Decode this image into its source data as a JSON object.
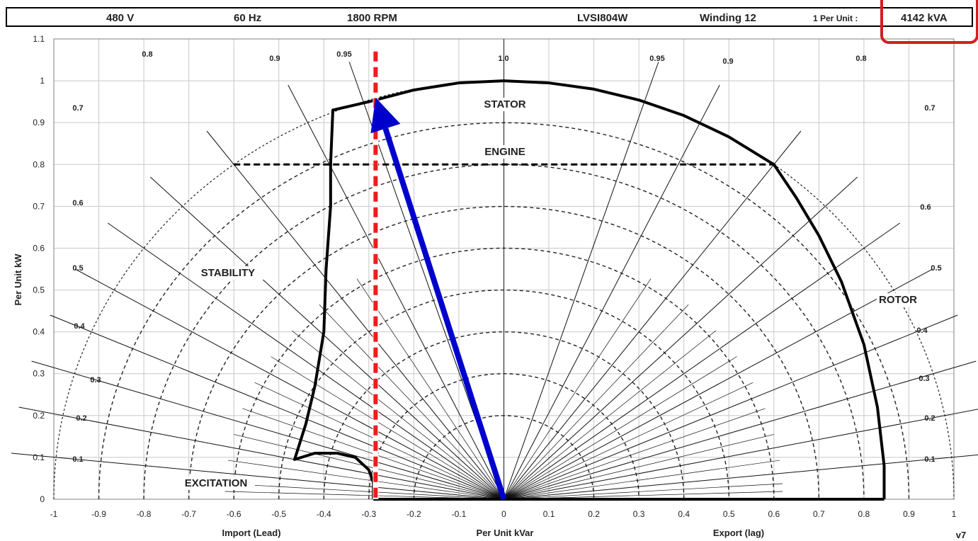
{
  "header": {
    "voltage": "480 V",
    "frequency": "60 Hz",
    "speed": "1800 RPM",
    "model": "LVSI804W",
    "winding": "Winding 12",
    "per_unit_label": "1 Per Unit :",
    "per_unit_value": "4142 kVA"
  },
  "colors": {
    "limit_curve": "#000000",
    "operating_vector": "#0000cc",
    "red_dashed_line": "#ee1c1c",
    "highlight_box": "#d02020",
    "grid": "#c8c8c8"
  },
  "chart_data": {
    "type": "line",
    "title": "",
    "xlabel": "Per Unit kVar",
    "xlabel_left": "Import (Lead)",
    "xlabel_right": "Export (lag)",
    "ylabel": "Per Unit kW",
    "xlim": [
      -1,
      1
    ],
    "ylim": [
      0,
      1.1
    ],
    "grid": true,
    "x_ticks": [
      "-1",
      "-0.9",
      "-0.8",
      "-0.7",
      "-0.6",
      "-0.5",
      "-0.4",
      "-0.3",
      "-0.2",
      "-0.1",
      "0",
      "0.1",
      "0.2",
      "0.3",
      "0.4",
      "0.5",
      "0.6",
      "0.7",
      "0.8",
      "0.9",
      "1"
    ],
    "y_ticks": [
      "0",
      "0.1",
      "0.2",
      "0.3",
      "0.4",
      "0.5",
      "0.6",
      "0.7",
      "0.8",
      "0.9",
      "1",
      "1.1"
    ],
    "circle_radii": [
      0.2,
      0.3,
      0.4,
      0.5,
      0.6,
      0.7,
      0.8,
      0.9,
      1.0
    ],
    "power_factor_labels": {
      "left": [
        "0.1",
        "0.2",
        "0.3",
        "0.4",
        "0.5",
        "0.6",
        "0.7",
        "0.8",
        "0.9",
        "0.95"
      ],
      "center": "1.0",
      "right": [
        "0.95",
        "0.9",
        "0.8",
        "0.7",
        "0.6",
        "0.5",
        "0.4",
        "0.3",
        "0.2",
        "0.1"
      ]
    },
    "region_labels": [
      "STATOR",
      "ENGINE",
      "STABILITY",
      "ROTOR",
      "EXCITATION"
    ],
    "capability_curve": [
      [
        -0.29,
        0
      ],
      [
        -0.29,
        0.04
      ],
      [
        -0.3,
        0.07
      ],
      [
        -0.33,
        0.1
      ],
      [
        -0.37,
        0.11
      ],
      [
        -0.42,
        0.11
      ],
      [
        -0.465,
        0.095
      ],
      [
        -0.44,
        0.18
      ],
      [
        -0.42,
        0.27
      ],
      [
        -0.4,
        0.4
      ],
      [
        -0.395,
        0.55
      ],
      [
        -0.385,
        0.7
      ],
      [
        -0.385,
        0.8
      ],
      [
        -0.38,
        0.93
      ],
      [
        -0.3,
        0.95
      ],
      [
        -0.2,
        0.978
      ],
      [
        -0.1,
        0.995
      ],
      [
        0,
        1.0
      ],
      [
        0.1,
        0.995
      ],
      [
        0.2,
        0.98
      ],
      [
        0.3,
        0.954
      ],
      [
        0.4,
        0.917
      ],
      [
        0.5,
        0.866
      ],
      [
        0.6,
        0.8
      ],
      [
        0.65,
        0.72
      ],
      [
        0.7,
        0.63
      ],
      [
        0.75,
        0.52
      ],
      [
        0.8,
        0.37
      ],
      [
        0.83,
        0.22
      ],
      [
        0.845,
        0.08
      ],
      [
        0.845,
        0
      ]
    ],
    "bottom_line": [
      [
        -0.29,
        0
      ],
      [
        0.845,
        0
      ]
    ],
    "engine_limit_line": [
      [
        -0.6,
        0.8
      ],
      [
        0.6,
        0.8
      ]
    ],
    "red_dashed_line_x": -0.285,
    "operating_vector": [
      [
        0,
        0
      ],
      [
        -0.285,
        0.96
      ]
    ],
    "version": "v7"
  }
}
